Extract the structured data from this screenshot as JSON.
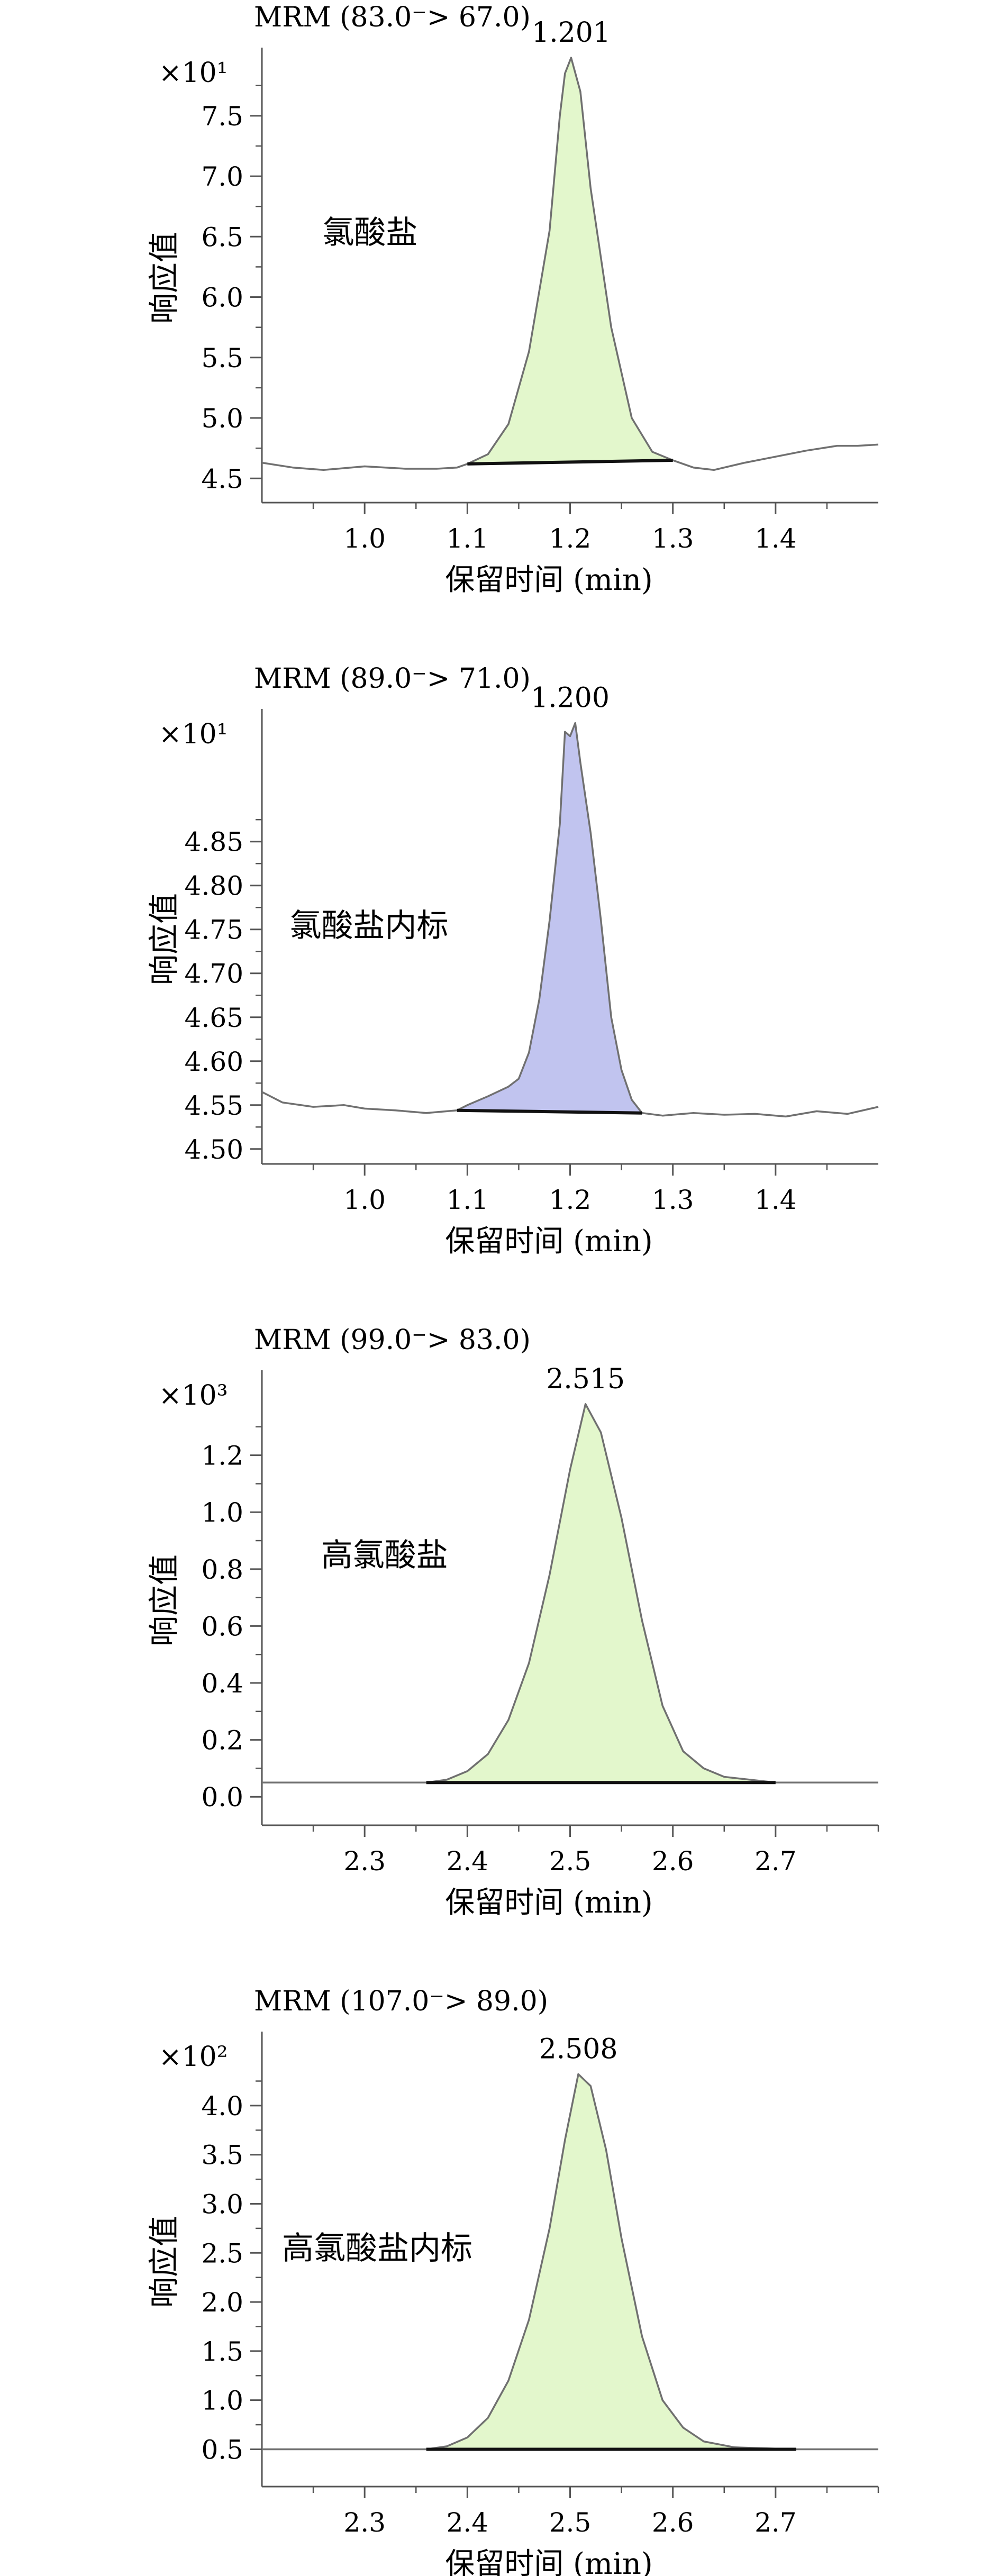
{
  "chart_data": [
    {
      "type": "line",
      "title": "MRM (83.0→67.0)",
      "title_parts": [
        "MRM (83.0",
        "> 67.0)"
      ],
      "multiplier": "×10¹",
      "ylabel": "响应值",
      "xlabel": "保留时间 (min)",
      "xlim": [
        0.9,
        1.5
      ],
      "ylim": [
        4.3,
        8.02
      ],
      "xticks": [
        1.0,
        1.1,
        1.2,
        1.3,
        1.4
      ],
      "yticks": [
        4.5,
        5.0,
        5.5,
        6.0,
        6.5,
        7.0,
        7.5
      ],
      "xticklabels": [
        "1.0",
        "1.1",
        "1.2",
        "1.3",
        "1.4"
      ],
      "yticklabels": [
        "4.5",
        "5.0",
        "5.5",
        "6.0",
        "6.5",
        "7.0",
        "7.5"
      ],
      "compound_label": "氯酸盐",
      "peak_rt": 1.201,
      "peak_rt_label": "1.201",
      "fill_color": "#e3f7cc",
      "baseline_segment": {
        "x": [
          1.1,
          1.3
        ],
        "y": [
          4.62,
          4.65
        ]
      },
      "series": [
        {
          "values": [
            [
              0.9,
              4.63
            ],
            [
              0.93,
              4.59
            ],
            [
              0.96,
              4.57
            ],
            [
              1.0,
              4.6
            ],
            [
              1.04,
              4.58
            ],
            [
              1.07,
              4.58
            ],
            [
              1.09,
              4.59
            ],
            [
              1.1,
              4.62
            ],
            [
              1.12,
              4.7
            ],
            [
              1.14,
              4.95
            ],
            [
              1.16,
              5.55
            ],
            [
              1.18,
              6.55
            ],
            [
              1.19,
              7.5
            ],
            [
              1.195,
              7.85
            ],
            [
              1.201,
              7.98
            ],
            [
              1.21,
              7.7
            ],
            [
              1.22,
              6.9
            ],
            [
              1.24,
              5.75
            ],
            [
              1.26,
              5.0
            ],
            [
              1.28,
              4.72
            ],
            [
              1.3,
              4.65
            ],
            [
              1.32,
              4.59
            ],
            [
              1.34,
              4.57
            ],
            [
              1.37,
              4.63
            ],
            [
              1.4,
              4.68
            ],
            [
              1.43,
              4.73
            ],
            [
              1.46,
              4.77
            ],
            [
              1.48,
              4.77
            ],
            [
              1.5,
              4.78
            ]
          ]
        }
      ]
    },
    {
      "type": "line",
      "title": "MRM (89.0→71.0)",
      "title_parts": [
        "MRM (89.0",
        "> 71.0)"
      ],
      "multiplier": "×10¹",
      "ylabel": "响应值",
      "xlabel": "保留时间 (min)",
      "xlim": [
        0.9,
        1.5
      ],
      "ylim": [
        4.483,
        4.995
      ],
      "xticks": [
        1.0,
        1.1,
        1.2,
        1.3,
        1.4
      ],
      "yticks": [
        4.5,
        4.55,
        4.6,
        4.65,
        4.7,
        4.75,
        4.8,
        4.85
      ],
      "xticklabels": [
        "1.0",
        "1.1",
        "1.2",
        "1.3",
        "1.4"
      ],
      "yticklabels": [
        "4.50",
        "4.55",
        "4.60",
        "4.65",
        "4.70",
        "4.75",
        "4.80",
        "4.85"
      ],
      "compound_label": "氯酸盐内标",
      "peak_rt": 1.2,
      "peak_rt_label": "1.200",
      "fill_color": "#c1c4ef",
      "baseline_segment": {
        "x": [
          1.09,
          1.27
        ],
        "y": [
          4.544,
          4.541
        ]
      },
      "series": [
        {
          "values": [
            [
              0.9,
              4.565
            ],
            [
              0.92,
              4.553
            ],
            [
              0.95,
              4.548
            ],
            [
              0.98,
              4.55
            ],
            [
              1.0,
              4.546
            ],
            [
              1.03,
              4.544
            ],
            [
              1.06,
              4.541
            ],
            [
              1.08,
              4.543
            ],
            [
              1.09,
              4.544
            ],
            [
              1.1,
              4.55
            ],
            [
              1.12,
              4.56
            ],
            [
              1.14,
              4.571
            ],
            [
              1.15,
              4.58
            ],
            [
              1.16,
              4.61
            ],
            [
              1.17,
              4.67
            ],
            [
              1.18,
              4.76
            ],
            [
              1.19,
              4.87
            ],
            [
              1.195,
              4.975
            ],
            [
              1.2,
              4.97
            ],
            [
              1.205,
              4.985
            ],
            [
              1.21,
              4.94
            ],
            [
              1.22,
              4.86
            ],
            [
              1.23,
              4.76
            ],
            [
              1.24,
              4.65
            ],
            [
              1.25,
              4.59
            ],
            [
              1.26,
              4.556
            ],
            [
              1.27,
              4.541
            ],
            [
              1.29,
              4.538
            ],
            [
              1.32,
              4.541
            ],
            [
              1.35,
              4.539
            ],
            [
              1.38,
              4.54
            ],
            [
              1.41,
              4.537
            ],
            [
              1.44,
              4.543
            ],
            [
              1.47,
              4.54
            ],
            [
              1.5,
              4.548
            ]
          ]
        }
      ]
    },
    {
      "type": "line",
      "title": "MRM (99.0→83.0)",
      "title_parts": [
        "MRM (99.0",
        "> 83.0)"
      ],
      "multiplier": "×10³",
      "ylabel": "响应值",
      "xlabel": "保留时间 (min)",
      "xlim": [
        2.2,
        2.8
      ],
      "ylim": [
        -0.1,
        1.48
      ],
      "xticks": [
        2.3,
        2.4,
        2.5,
        2.6,
        2.7
      ],
      "yticks": [
        0.0,
        0.2,
        0.4,
        0.6,
        0.8,
        1.0,
        1.2
      ],
      "xticklabels": [
        "2.3",
        "2.4",
        "2.5",
        "2.6",
        "2.7"
      ],
      "yticklabels": [
        "0.0",
        "0.2",
        "0.4",
        "0.6",
        "0.8",
        "1.0",
        "1.2"
      ],
      "compound_label": "高氯酸盐",
      "peak_rt": 2.515,
      "peak_rt_label": "2.515",
      "fill_color": "#e3f7cc",
      "baseline_segment": {
        "x": [
          2.36,
          2.7
        ],
        "y": [
          0.05,
          0.05
        ]
      },
      "series": [
        {
          "values": [
            [
              2.2,
              0.05
            ],
            [
              2.3,
              0.05
            ],
            [
              2.36,
              0.05
            ],
            [
              2.38,
              0.06
            ],
            [
              2.4,
              0.09
            ],
            [
              2.42,
              0.15
            ],
            [
              2.44,
              0.27
            ],
            [
              2.46,
              0.47
            ],
            [
              2.48,
              0.78
            ],
            [
              2.5,
              1.15
            ],
            [
              2.515,
              1.38
            ],
            [
              2.53,
              1.28
            ],
            [
              2.55,
              0.98
            ],
            [
              2.57,
              0.62
            ],
            [
              2.59,
              0.32
            ],
            [
              2.61,
              0.16
            ],
            [
              2.63,
              0.1
            ],
            [
              2.65,
              0.07
            ],
            [
              2.7,
              0.05
            ],
            [
              2.8,
              0.05
            ]
          ]
        }
      ]
    },
    {
      "type": "line",
      "title": "MRM (107.0→89.0)",
      "title_parts": [
        "MRM (107.0",
        "> 89.0)"
      ],
      "multiplier": "×10²",
      "ylabel": "响应值",
      "xlabel": "保留时间 (min)",
      "xlim": [
        2.2,
        2.8
      ],
      "ylim": [
        0.12,
        4.7
      ],
      "xticks": [
        2.3,
        2.4,
        2.5,
        2.6,
        2.7
      ],
      "yticks": [
        0.5,
        1.0,
        1.5,
        2.0,
        2.5,
        3.0,
        3.5,
        4.0
      ],
      "xticklabels": [
        "2.3",
        "2.4",
        "2.5",
        "2.6",
        "2.7"
      ],
      "yticklabels": [
        "0.5",
        "1.0",
        "1.5",
        "2.0",
        "2.5",
        "3.0",
        "3.5",
        "4.0"
      ],
      "compound_label": "高氯酸盐内标",
      "peak_rt": 2.508,
      "peak_rt_label": "2.508",
      "fill_color": "#e3f7cc",
      "baseline_segment": {
        "x": [
          2.36,
          2.72
        ],
        "y": [
          0.5,
          0.5
        ]
      },
      "series": [
        {
          "values": [
            [
              2.2,
              0.5
            ],
            [
              2.3,
              0.5
            ],
            [
              2.36,
              0.5
            ],
            [
              2.38,
              0.53
            ],
            [
              2.4,
              0.62
            ],
            [
              2.42,
              0.82
            ],
            [
              2.44,
              1.2
            ],
            [
              2.46,
              1.82
            ],
            [
              2.48,
              2.75
            ],
            [
              2.495,
              3.65
            ],
            [
              2.508,
              4.32
            ],
            [
              2.52,
              4.2
            ],
            [
              2.535,
              3.55
            ],
            [
              2.55,
              2.65
            ],
            [
              2.57,
              1.65
            ],
            [
              2.59,
              1.0
            ],
            [
              2.61,
              0.72
            ],
            [
              2.63,
              0.58
            ],
            [
              2.66,
              0.52
            ],
            [
              2.72,
              0.5
            ],
            [
              2.8,
              0.5
            ]
          ]
        }
      ]
    }
  ]
}
